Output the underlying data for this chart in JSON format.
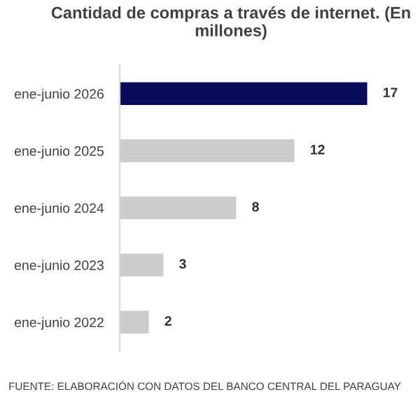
{
  "chart_data": {
    "type": "bar",
    "orientation": "horizontal",
    "title": "Cantidad de compras a través de internet. (En millones)",
    "categories": [
      "ene-junio 2026",
      "ene-junio 2025",
      "ene-junio 2024",
      "ene-junio 2023",
      "ene-junio 2022"
    ],
    "values": [
      17,
      12,
      8,
      3,
      2
    ],
    "colors": [
      "#0b0b5c",
      "#cccccc",
      "#cccccc",
      "#cccccc",
      "#cccccc"
    ],
    "data_labels": true,
    "annotations": [
      "FUENTE: ELABORACIÓN CON DATOS DEL BANCO CENTRAL DEL PARAGUAY"
    ]
  }
}
